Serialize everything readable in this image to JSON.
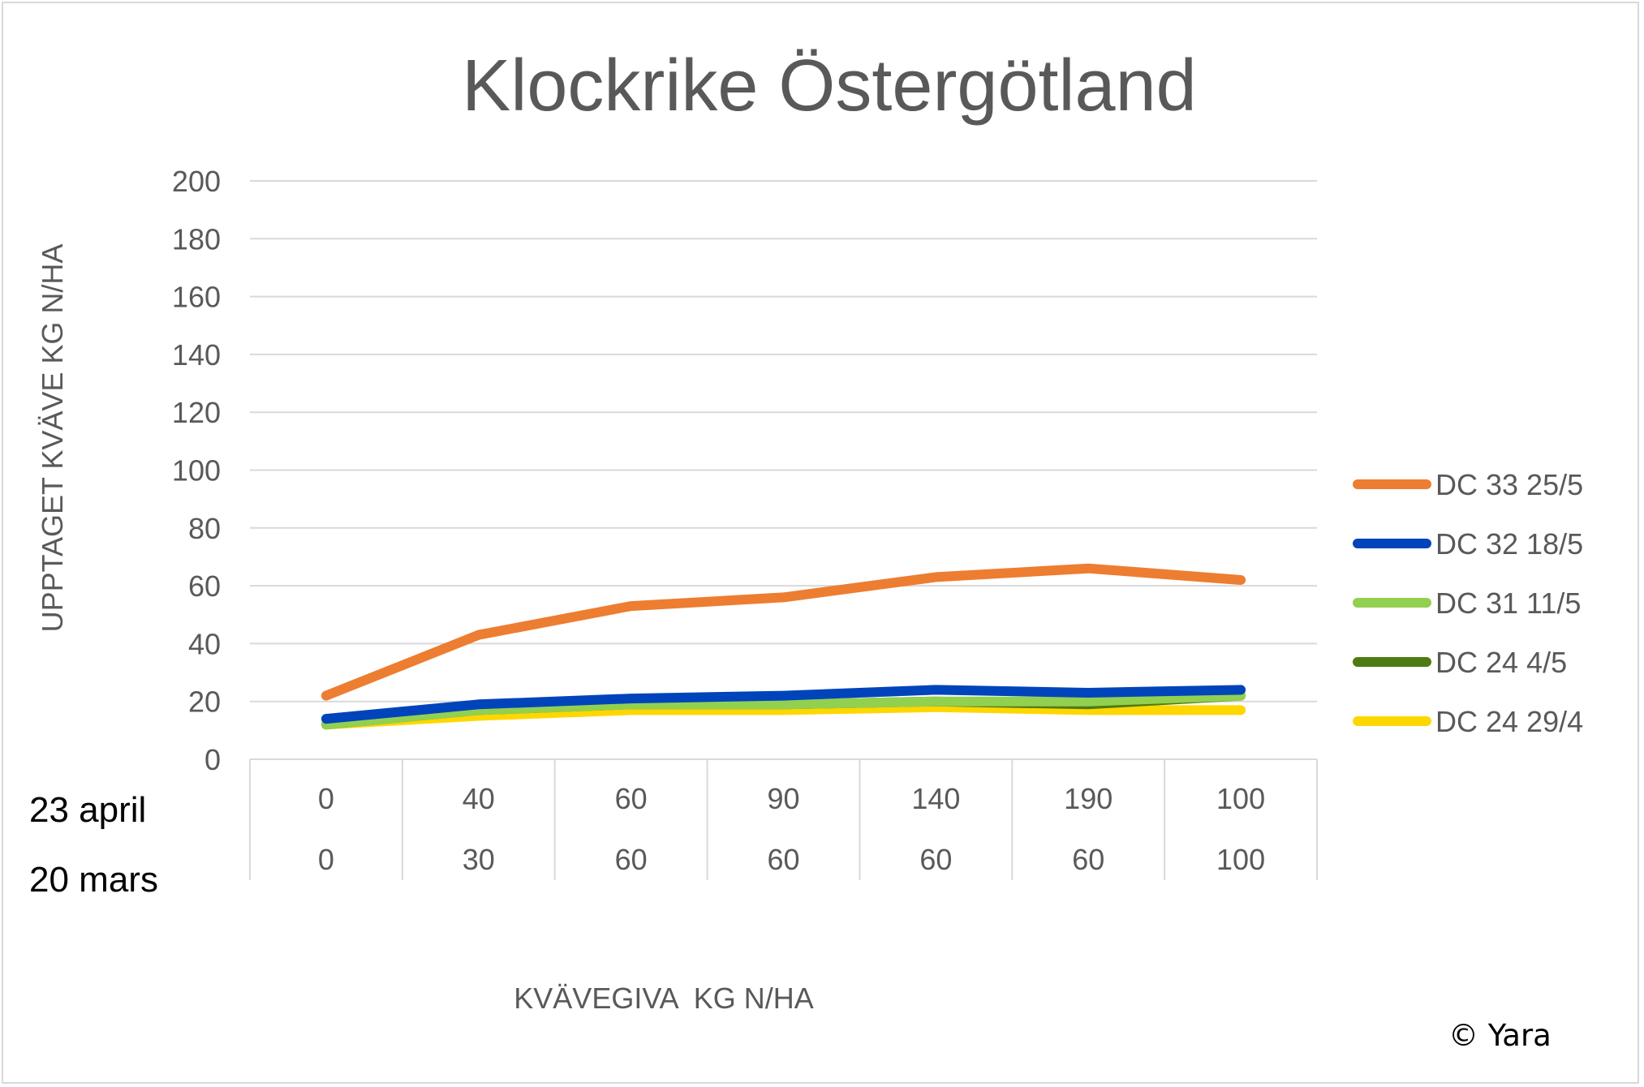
{
  "chart_data": {
    "type": "line",
    "title": "Klockrike Östergötland",
    "ylabel": "UPPTAGET KVÄVE KG N/HA",
    "xlabel": "KVÄVEGIVA  KG N/HA",
    "ylim": [
      0,
      200
    ],
    "yticks": [
      "0",
      "20",
      "40",
      "60",
      "80",
      "100",
      "120",
      "140",
      "160",
      "180",
      "200"
    ],
    "grid": true,
    "legend_position": "right",
    "category_rows": [
      {
        "label": "23 april",
        "values": [
          "0",
          "40",
          "60",
          "90",
          "140",
          "190",
          "100"
        ]
      },
      {
        "label": "20 mars",
        "values": [
          "0",
          "30",
          "60",
          "60",
          "60",
          "60",
          "100"
        ]
      }
    ],
    "series": [
      {
        "name": "DC 33 25/5",
        "color": "#ED7D31",
        "values": [
          22,
          43,
          53,
          56,
          63,
          66,
          62
        ]
      },
      {
        "name": "DC 32 18/5",
        "color": "#0044BB",
        "values": [
          14,
          19,
          21,
          22,
          24,
          23,
          24
        ]
      },
      {
        "name": "DC 31 11/5",
        "color": "#92D050",
        "values": [
          12,
          17,
          19,
          19,
          20,
          20,
          22
        ]
      },
      {
        "name": "DC 24 4/5",
        "color": "#4E7B12",
        "values": [
          12,
          17,
          19,
          19,
          20,
          19,
          22
        ]
      },
      {
        "name": "DC 24 29/4",
        "color": "#FFD700",
        "values": [
          12,
          15,
          17,
          17,
          18,
          17,
          17
        ]
      }
    ]
  },
  "copyright": "© Yara"
}
